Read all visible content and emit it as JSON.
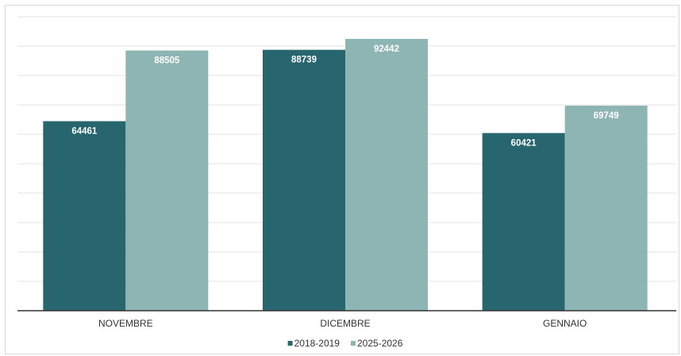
{
  "chart_data": {
    "type": "bar",
    "categories": [
      "NOVEMBRE",
      "DICEMBRE",
      "GENNAIO"
    ],
    "series": [
      {
        "name": "2018-2019",
        "color": "#27666F",
        "values": [
          64461,
          88739,
          60421
        ]
      },
      {
        "name": "2025-2026",
        "color": "#8DB5B3",
        "values": [
          88505,
          92442,
          69749
        ]
      }
    ],
    "ylim": [
      0,
      100000
    ],
    "grid": true,
    "legend_position": "bottom-center",
    "title": "",
    "xlabel": "",
    "ylabel": ""
  }
}
